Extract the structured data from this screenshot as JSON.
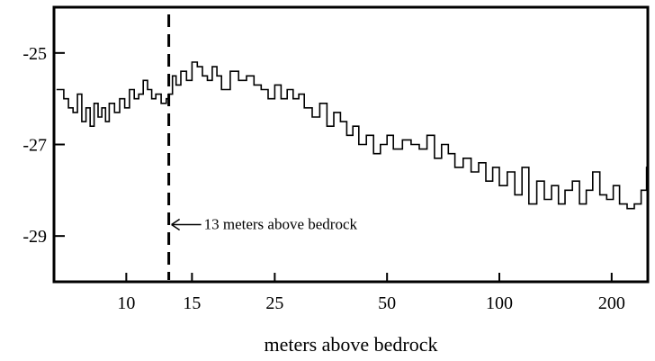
{
  "chart_data": {
    "type": "line",
    "step": true,
    "title": "",
    "xlabel": "meters above bedrock",
    "ylabel": "",
    "xscale": "log",
    "xlim": [
      6.4,
      250
    ],
    "ylim": [
      -30,
      -24
    ],
    "xticks": [
      10,
      15,
      25,
      50,
      100,
      200
    ],
    "yticks": [
      -25,
      -27,
      -29
    ],
    "grid": false,
    "legend": "none",
    "line_color": "#000000",
    "annotation": {
      "x": 13,
      "label": "13 meters above bedrock",
      "y": -28.75,
      "style": "dashed-vertical-line-with-arrow"
    },
    "series": [
      {
        "x": [
          6.5,
          6.8,
          7.0,
          7.2,
          7.4,
          7.6,
          7.8,
          8.0,
          8.2,
          8.4,
          8.6,
          8.8,
          9.0,
          9.3,
          9.6,
          9.9,
          10.2,
          10.5,
          10.8,
          11.1,
          11.4,
          11.7,
          12.0,
          12.4,
          12.8,
          13.0,
          13.3,
          13.6,
          14.0,
          14.5,
          15.0,
          15.5,
          16.0,
          16.5,
          17.0,
          17.5,
          18.0,
          19.0,
          20.0,
          21.0,
          22.0,
          23.0,
          24.0,
          25.0,
          26.0,
          27.0,
          28.0,
          29.0,
          30.0,
          31.5,
          33.0,
          34.5,
          36.0,
          37.5,
          39.0,
          40.5,
          42.0,
          44.0,
          46.0,
          48.0,
          50.0,
          52.0,
          55.0,
          58.0,
          61.0,
          64.0,
          67.0,
          70.0,
          73.0,
          76.0,
          80.0,
          84.0,
          88.0,
          92.0,
          96.0,
          100.0,
          105.0,
          110.0,
          115.0,
          120.0,
          126.0,
          132.0,
          138.0,
          144.0,
          150.0,
          157.0,
          164.0,
          171.0,
          178.0,
          186.0,
          194.0,
          202.0,
          210.0,
          220.0,
          230.0,
          240.0,
          248.0
        ],
        "y": [
          -25.8,
          -26.0,
          -26.2,
          -26.3,
          -25.9,
          -26.5,
          -26.2,
          -26.6,
          -26.1,
          -26.4,
          -26.2,
          -26.5,
          -26.1,
          -26.3,
          -26.0,
          -26.2,
          -25.8,
          -26.0,
          -25.9,
          -25.6,
          -25.8,
          -26.0,
          -25.9,
          -26.1,
          -26.0,
          -25.9,
          -25.5,
          -25.7,
          -25.4,
          -25.6,
          -25.2,
          -25.3,
          -25.5,
          -25.6,
          -25.3,
          -25.5,
          -25.8,
          -25.4,
          -25.6,
          -25.5,
          -25.7,
          -25.8,
          -26.0,
          -25.7,
          -26.0,
          -25.8,
          -26.0,
          -25.9,
          -26.2,
          -26.4,
          -26.1,
          -26.6,
          -26.3,
          -26.5,
          -26.8,
          -26.6,
          -27.0,
          -26.8,
          -27.2,
          -27.0,
          -26.8,
          -27.1,
          -26.9,
          -27.0,
          -27.1,
          -26.8,
          -27.3,
          -27.0,
          -27.2,
          -27.5,
          -27.3,
          -27.6,
          -27.4,
          -27.8,
          -27.5,
          -27.9,
          -27.6,
          -28.1,
          -27.5,
          -28.3,
          -27.8,
          -28.2,
          -27.9,
          -28.3,
          -28.0,
          -27.8,
          -28.3,
          -28.0,
          -27.6,
          -28.1,
          -28.2,
          -27.9,
          -28.3,
          -28.4,
          -28.3,
          -28.0,
          -27.5
        ]
      }
    ]
  }
}
